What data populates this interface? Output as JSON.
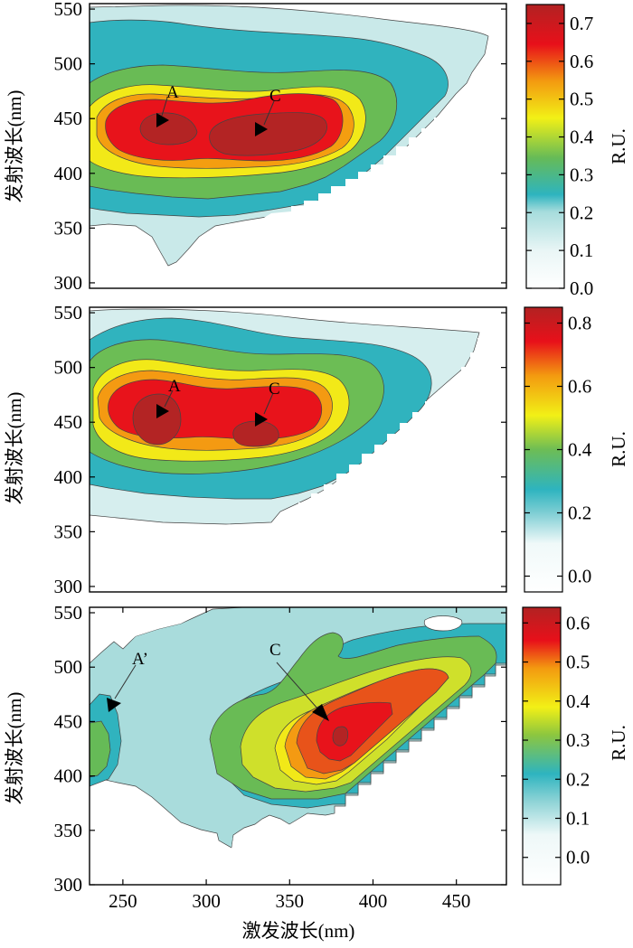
{
  "chart_data": [
    {
      "type": "heatmap",
      "subtype": "contour",
      "ylabel": "发射波长(nm)",
      "xlabel": "",
      "xlim": [
        230,
        480
      ],
      "ylim": [
        295,
        555
      ],
      "yticks": [
        300,
        350,
        400,
        450,
        500,
        550
      ],
      "xticks": [],
      "colorbar": {
        "label": "R.U.",
        "range": [
          0.0,
          0.75
        ],
        "ticks": [
          0.0,
          0.1,
          0.2,
          0.3,
          0.4,
          0.5,
          0.6,
          0.7
        ]
      },
      "peaks": [
        {
          "label": "A",
          "ex": 275,
          "em": 445,
          "value": 0.74
        },
        {
          "label": "C",
          "ex": 335,
          "em": 435,
          "value": 0.74
        }
      ]
    },
    {
      "type": "heatmap",
      "subtype": "contour",
      "ylabel": "发射波长(nm)",
      "xlabel": "",
      "xlim": [
        230,
        480
      ],
      "ylim": [
        295,
        555
      ],
      "yticks": [
        300,
        350,
        400,
        450,
        500,
        550
      ],
      "xticks": [],
      "colorbar": {
        "label": "R.U.",
        "range": [
          -0.05,
          0.85
        ],
        "ticks": [
          0.0,
          0.2,
          0.4,
          0.6,
          0.8
        ]
      },
      "peaks": [
        {
          "label": "A",
          "ex": 275,
          "em": 455,
          "value": 0.83
        },
        {
          "label": "C",
          "ex": 335,
          "em": 445,
          "value": 0.83
        }
      ]
    },
    {
      "type": "heatmap",
      "subtype": "contour",
      "ylabel": "发射波长(nm)",
      "xlabel": "激发波长(nm)",
      "xlim": [
        230,
        480
      ],
      "ylim": [
        300,
        555
      ],
      "yticks": [
        300,
        350,
        400,
        450,
        500,
        550
      ],
      "xticks": [
        250,
        300,
        350,
        400,
        450
      ],
      "colorbar": {
        "label": "R.U.",
        "range": [
          -0.07,
          0.64
        ],
        "ticks": [
          0.0,
          0.1,
          0.2,
          0.3,
          0.4,
          0.5,
          0.6
        ]
      },
      "peaks": [
        {
          "label": "A’",
          "ex": 237,
          "em": 460,
          "value": 0.2
        },
        {
          "label": "C",
          "ex": 372,
          "em": 450,
          "value": 0.64
        }
      ]
    }
  ]
}
